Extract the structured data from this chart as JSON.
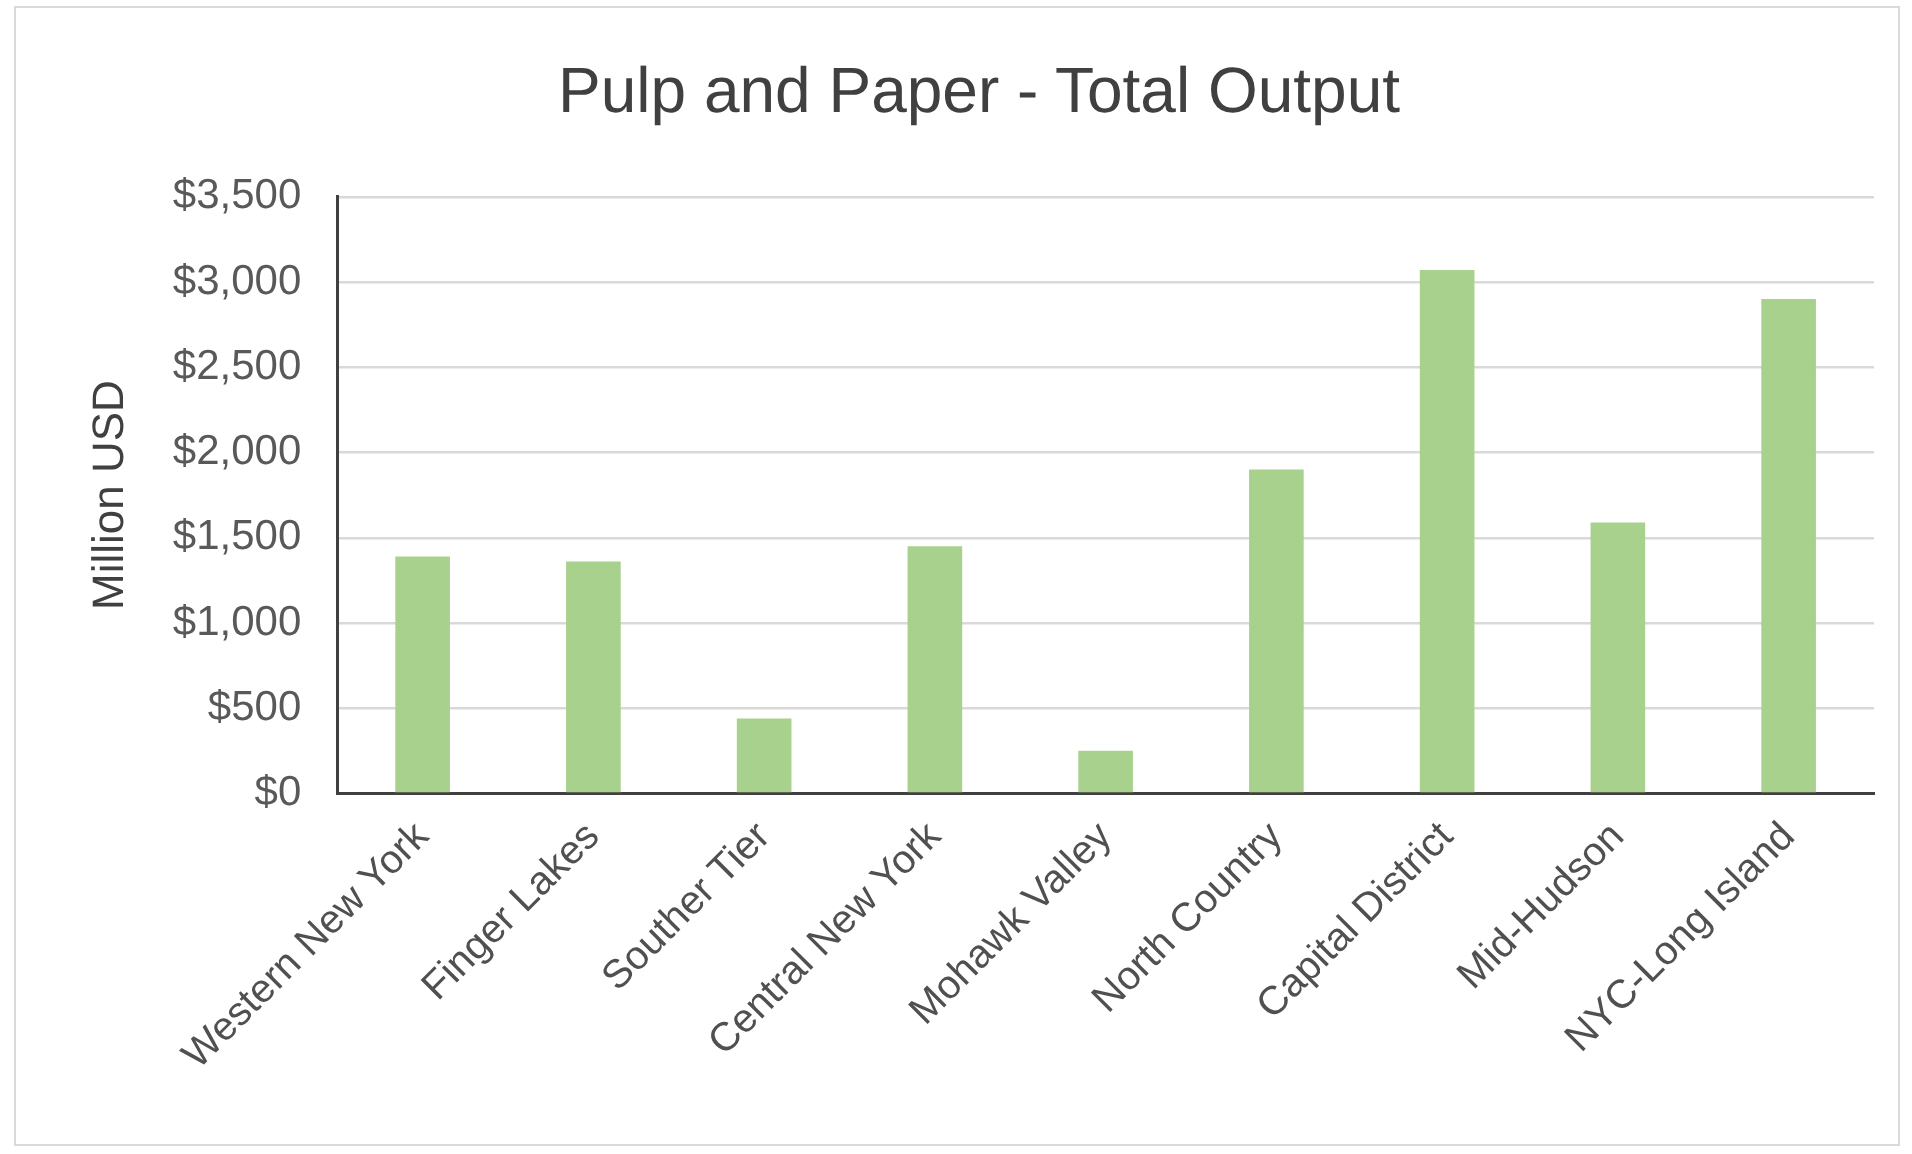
{
  "chart_data": {
    "type": "bar",
    "title": "Pulp and Paper - Total Output",
    "ylabel": "Million USD",
    "categories": [
      "Western New York",
      "Finger Lakes",
      "Souther Tier",
      "Central New York",
      "Mohawk Valley",
      "North Country",
      "Capital District",
      "Mid-Hudson",
      "NYC-Long Island"
    ],
    "values": [
      1390,
      1360,
      440,
      1450,
      250,
      1900,
      3070,
      1590,
      2900
    ],
    "color": "#a9d18e",
    "ylim": [
      0,
      3500
    ],
    "yticks": [
      {
        "value": 0,
        "label": "$0"
      },
      {
        "value": 500,
        "label": "$500"
      },
      {
        "value": 1000,
        "label": "$1,000"
      },
      {
        "value": 1500,
        "label": "$1,500"
      },
      {
        "value": 2000,
        "label": "$2,000"
      },
      {
        "value": 2500,
        "label": "$2,500"
      },
      {
        "value": 3000,
        "label": "$3,000"
      },
      {
        "value": 3500,
        "label": "$3,500"
      }
    ],
    "grid": "y"
  }
}
